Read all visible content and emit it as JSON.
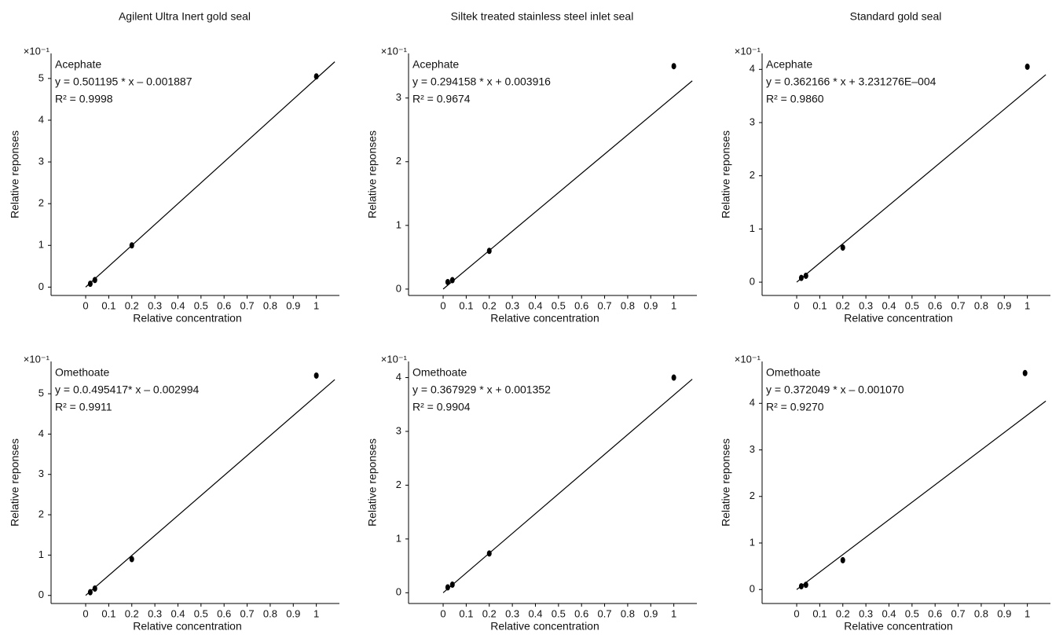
{
  "columns": [
    "Agilent Ultra Inert gold seal",
    "Siltek treated stainless steel inlet seal",
    "Standard gold seal"
  ],
  "chart_data": [
    {
      "type": "scatter",
      "compound": "Acephate",
      "equation": "y = 0.501195 * x – 0.001887",
      "r_squared": "R² = 0.9998",
      "y_multiplier": "×10⁻¹",
      "xlabel": "Relative concentration",
      "ylabel": "Relative reponses",
      "x": [
        0.02,
        0.04,
        0.2,
        1
      ],
      "values": [
        0.08,
        0.17,
        1.0,
        5.05
      ],
      "fit": {
        "x": [
          0,
          1.08
        ],
        "values": [
          0,
          5.4
        ]
      },
      "xlim": [
        -0.15,
        1.1
      ],
      "ylim": [
        -0.2,
        5.6
      ],
      "xticks": [
        0,
        0.1,
        0.2,
        0.3,
        0.4,
        0.5,
        0.6,
        0.7,
        0.8,
        0.9,
        1
      ],
      "yticks": [
        0,
        1,
        2,
        3,
        4,
        5
      ]
    },
    {
      "type": "scatter",
      "compound": "Acephate",
      "equation": "y = 0.294158 * x  + 0.003916",
      "r_squared": "R² = 0.9674",
      "y_multiplier": "×10⁻¹",
      "xlabel": "Relative concentration",
      "ylabel": "Relative reponses",
      "x": [
        0.02,
        0.04,
        0.2,
        1
      ],
      "values": [
        0.11,
        0.14,
        0.6,
        3.5
      ],
      "fit": {
        "x": [
          0,
          1.08
        ],
        "values": [
          0,
          3.27
        ]
      },
      "xlim": [
        -0.15,
        1.1
      ],
      "ylim": [
        -0.1,
        3.7
      ],
      "xticks": [
        0,
        0.1,
        0.2,
        0.3,
        0.4,
        0.5,
        0.6,
        0.7,
        0.8,
        0.9,
        1
      ],
      "yticks": [
        0,
        1,
        2,
        3
      ]
    },
    {
      "type": "scatter",
      "compound": "Acephate",
      "equation": "y = 0.362166 * x  + 3.231276E–004",
      "r_squared": "R² = 0.9860",
      "y_multiplier": "×10⁻¹",
      "xlabel": "Relative concentration",
      "ylabel": "Relative reponses",
      "x": [
        0.02,
        0.04,
        0.2,
        1
      ],
      "values": [
        0.08,
        0.12,
        0.65,
        4.05
      ],
      "fit": {
        "x": [
          0,
          1.08
        ],
        "values": [
          0,
          3.9
        ]
      },
      "xlim": [
        -0.15,
        1.1
      ],
      "ylim": [
        -0.25,
        4.3
      ],
      "xticks": [
        0,
        0.1,
        0.2,
        0.3,
        0.4,
        0.5,
        0.6,
        0.7,
        0.8,
        0.9,
        1
      ],
      "yticks": [
        0,
        1,
        2,
        3,
        4
      ]
    },
    {
      "type": "scatter",
      "compound": "Omethoate",
      "equation": "y = 0.0.495417* x – 0.002994",
      "r_squared": "R² = 0.9911",
      "y_multiplier": "×10⁻¹",
      "xlabel": "Relative concentration",
      "ylabel": "Relative reponses",
      "x": [
        0.02,
        0.04,
        0.2,
        1
      ],
      "values": [
        0.08,
        0.17,
        0.9,
        5.45
      ],
      "fit": {
        "x": [
          0,
          1.08
        ],
        "values": [
          0,
          5.35
        ]
      },
      "xlim": [
        -0.15,
        1.1
      ],
      "ylim": [
        -0.2,
        5.8
      ],
      "xticks": [
        0,
        0.1,
        0.2,
        0.3,
        0.4,
        0.5,
        0.6,
        0.7,
        0.8,
        0.9,
        1
      ],
      "yticks": [
        0,
        1,
        2,
        3,
        4,
        5
      ]
    },
    {
      "type": "scatter",
      "compound": "Omethoate",
      "equation": "y = 0.367929 * x  + 0.001352",
      "r_squared": "R² = 0.9904",
      "y_multiplier": "×10⁻¹",
      "xlabel": "Relative concentration",
      "ylabel": "Relative reponses",
      "x": [
        0.02,
        0.04,
        0.2,
        1
      ],
      "values": [
        0.1,
        0.15,
        0.73,
        4.0
      ],
      "fit": {
        "x": [
          0,
          1.08
        ],
        "values": [
          0,
          3.97
        ]
      },
      "xlim": [
        -0.15,
        1.1
      ],
      "ylim": [
        -0.2,
        4.3
      ],
      "xticks": [
        0,
        0.1,
        0.2,
        0.3,
        0.4,
        0.5,
        0.6,
        0.7,
        0.8,
        0.9,
        1
      ],
      "yticks": [
        0,
        1,
        2,
        3,
        4
      ]
    },
    {
      "type": "scatter",
      "compound": "Omethoate",
      "equation": "y = 0.372049 * x – 0.001070",
      "r_squared": "R² = 0.9270",
      "y_multiplier": "×10⁻¹",
      "xlabel": "Relative concentration",
      "ylabel": "Relative reponses",
      "x": [
        0.02,
        0.04,
        0.2,
        0.99
      ],
      "values": [
        0.07,
        0.1,
        0.63,
        4.65
      ],
      "fit": {
        "x": [
          0,
          1.08
        ],
        "values": [
          0,
          4.05
        ]
      },
      "xlim": [
        -0.15,
        1.1
      ],
      "ylim": [
        -0.3,
        4.9
      ],
      "xticks": [
        0,
        0.1,
        0.2,
        0.3,
        0.4,
        0.5,
        0.6,
        0.7,
        0.8,
        0.9,
        1
      ],
      "yticks": [
        0,
        1,
        2,
        3,
        4
      ]
    }
  ]
}
